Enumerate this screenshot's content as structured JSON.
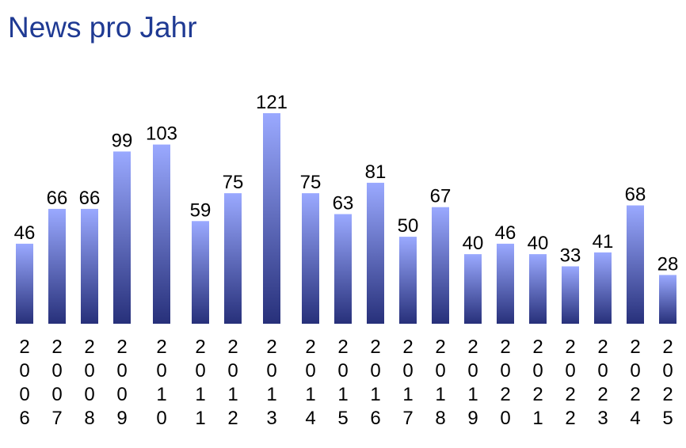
{
  "chart_data": {
    "type": "bar",
    "title": "News pro Jahr",
    "xlabel": "",
    "ylabel": "",
    "categories": [
      "2006",
      "2007",
      "2008",
      "2009",
      "2010",
      "2011",
      "2012",
      "2013",
      "2014",
      "2015",
      "2016",
      "2017",
      "2018",
      "2019",
      "2020",
      "2021",
      "2022",
      "2023",
      "2024",
      "2025"
    ],
    "values": [
      46,
      66,
      66,
      99,
      103,
      59,
      75,
      121,
      75,
      63,
      81,
      50,
      67,
      40,
      46,
      40,
      33,
      41,
      68,
      28
    ],
    "ylim": [
      0,
      121
    ],
    "grid": false,
    "legend": "none",
    "data_labels": true,
    "colors": {
      "title": "#1f3a93",
      "bar_top": "#9aa9ff",
      "bar_bottom": "#27307a"
    }
  }
}
